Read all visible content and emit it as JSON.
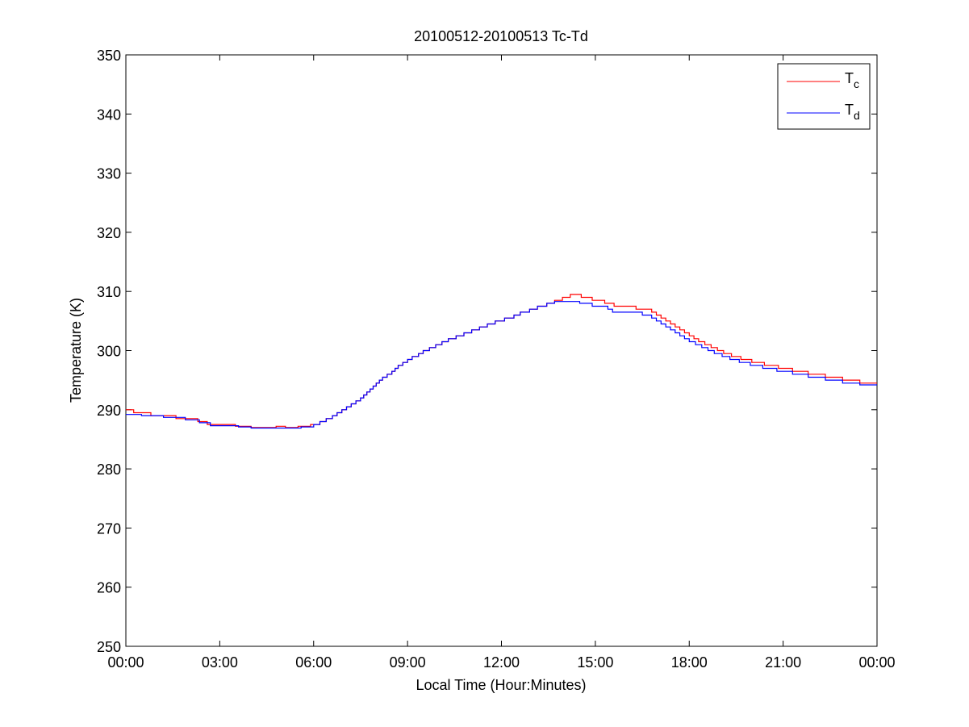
{
  "chart_data": {
    "type": "line",
    "title": "20100512-20100513 Tc-Td",
    "xlabel": "Local Time (Hour:Minutes)",
    "ylabel": "Temperature (K)",
    "xlim_hours": [
      0,
      24
    ],
    "ylim": [
      250,
      350
    ],
    "x_tick_hours": [
      0,
      3,
      6,
      9,
      12,
      15,
      18,
      21,
      24
    ],
    "x_tick_labels": [
      "00:00",
      "03:00",
      "06:00",
      "09:00",
      "12:00",
      "15:00",
      "18:00",
      "21:00",
      "00:00"
    ],
    "y_ticks": [
      250,
      260,
      270,
      280,
      290,
      300,
      310,
      320,
      330,
      340,
      350
    ],
    "grid": false,
    "legend_placement": "top-right",
    "series": [
      {
        "name": "Tc",
        "legend_main": "T",
        "legend_sub": "c",
        "color": "#ff0000",
        "step": true,
        "points": [
          [
            0.0,
            290.0
          ],
          [
            0.25,
            289.5
          ],
          [
            0.8,
            289.0
          ],
          [
            1.6,
            288.5
          ],
          [
            2.3,
            288.0
          ],
          [
            2.6,
            287.5
          ],
          [
            3.5,
            287.2
          ],
          [
            4.0,
            287.0
          ],
          [
            4.8,
            287.2
          ],
          [
            5.1,
            287.0
          ],
          [
            5.5,
            287.2
          ],
          [
            5.9,
            287.5
          ],
          [
            6.2,
            288.0
          ],
          [
            6.4,
            288.5
          ],
          [
            6.6,
            289.0
          ],
          [
            6.75,
            289.5
          ],
          [
            6.9,
            290.0
          ],
          [
            7.05,
            290.5
          ],
          [
            7.2,
            291.0
          ],
          [
            7.35,
            291.5
          ],
          [
            7.5,
            292.0
          ],
          [
            7.6,
            292.5
          ],
          [
            7.7,
            293.0
          ],
          [
            7.8,
            293.5
          ],
          [
            7.9,
            294.0
          ],
          [
            8.0,
            294.5
          ],
          [
            8.1,
            295.0
          ],
          [
            8.2,
            295.5
          ],
          [
            8.35,
            296.0
          ],
          [
            8.5,
            296.5
          ],
          [
            8.6,
            297.0
          ],
          [
            8.7,
            297.5
          ],
          [
            8.85,
            298.0
          ],
          [
            9.0,
            298.5
          ],
          [
            9.15,
            299.0
          ],
          [
            9.35,
            299.5
          ],
          [
            9.5,
            300.0
          ],
          [
            9.7,
            300.5
          ],
          [
            9.9,
            301.0
          ],
          [
            10.1,
            301.5
          ],
          [
            10.3,
            302.0
          ],
          [
            10.55,
            302.5
          ],
          [
            10.8,
            303.0
          ],
          [
            11.05,
            303.5
          ],
          [
            11.3,
            304.0
          ],
          [
            11.55,
            304.5
          ],
          [
            11.8,
            305.0
          ],
          [
            12.1,
            305.5
          ],
          [
            12.4,
            306.0
          ],
          [
            12.6,
            306.5
          ],
          [
            12.9,
            307.0
          ],
          [
            13.15,
            307.5
          ],
          [
            13.45,
            308.0
          ],
          [
            13.7,
            308.5
          ],
          [
            13.95,
            309.0
          ],
          [
            14.2,
            309.5
          ],
          [
            14.55,
            309.0
          ],
          [
            14.9,
            308.5
          ],
          [
            15.3,
            308.0
          ],
          [
            15.6,
            307.5
          ],
          [
            16.3,
            307.0
          ],
          [
            16.8,
            306.5
          ],
          [
            16.95,
            306.0
          ],
          [
            17.1,
            305.5
          ],
          [
            17.25,
            305.0
          ],
          [
            17.4,
            304.5
          ],
          [
            17.55,
            304.0
          ],
          [
            17.7,
            303.5
          ],
          [
            17.85,
            303.0
          ],
          [
            18.0,
            302.5
          ],
          [
            18.15,
            302.0
          ],
          [
            18.3,
            301.5
          ],
          [
            18.5,
            301.0
          ],
          [
            18.7,
            300.5
          ],
          [
            18.9,
            300.0
          ],
          [
            19.1,
            299.5
          ],
          [
            19.35,
            299.0
          ],
          [
            19.65,
            298.5
          ],
          [
            20.0,
            298.0
          ],
          [
            20.4,
            297.5
          ],
          [
            20.85,
            297.0
          ],
          [
            21.3,
            296.5
          ],
          [
            21.8,
            296.0
          ],
          [
            22.35,
            295.5
          ],
          [
            22.9,
            295.0
          ],
          [
            23.45,
            294.5
          ],
          [
            24.0,
            294.5
          ]
        ]
      },
      {
        "name": "Td",
        "legend_main": "T",
        "legend_sub": "d",
        "color": "#0000ff",
        "step": true,
        "points": [
          [
            0.0,
            289.2
          ],
          [
            0.5,
            289.0
          ],
          [
            1.2,
            288.7
          ],
          [
            1.9,
            288.3
          ],
          [
            2.35,
            287.8
          ],
          [
            2.7,
            287.3
          ],
          [
            3.6,
            287.1
          ],
          [
            4.0,
            286.9
          ],
          [
            5.6,
            287.1
          ],
          [
            6.0,
            287.5
          ],
          [
            6.2,
            288.0
          ],
          [
            6.4,
            288.5
          ],
          [
            6.6,
            289.0
          ],
          [
            6.75,
            289.5
          ],
          [
            6.9,
            290.0
          ],
          [
            7.05,
            290.5
          ],
          [
            7.2,
            291.0
          ],
          [
            7.35,
            291.5
          ],
          [
            7.5,
            292.0
          ],
          [
            7.6,
            292.5
          ],
          [
            7.7,
            293.0
          ],
          [
            7.8,
            293.5
          ],
          [
            7.9,
            294.0
          ],
          [
            8.0,
            294.5
          ],
          [
            8.1,
            295.0
          ],
          [
            8.2,
            295.5
          ],
          [
            8.35,
            296.0
          ],
          [
            8.5,
            296.5
          ],
          [
            8.6,
            297.0
          ],
          [
            8.7,
            297.5
          ],
          [
            8.85,
            298.0
          ],
          [
            9.0,
            298.5
          ],
          [
            9.15,
            299.0
          ],
          [
            9.35,
            299.5
          ],
          [
            9.5,
            300.0
          ],
          [
            9.7,
            300.5
          ],
          [
            9.9,
            301.0
          ],
          [
            10.1,
            301.5
          ],
          [
            10.3,
            302.0
          ],
          [
            10.55,
            302.5
          ],
          [
            10.8,
            303.0
          ],
          [
            11.05,
            303.5
          ],
          [
            11.3,
            304.0
          ],
          [
            11.55,
            304.5
          ],
          [
            11.8,
            305.0
          ],
          [
            12.1,
            305.5
          ],
          [
            12.4,
            306.0
          ],
          [
            12.6,
            306.5
          ],
          [
            12.9,
            307.0
          ],
          [
            13.15,
            307.5
          ],
          [
            13.45,
            308.0
          ],
          [
            13.7,
            308.3
          ],
          [
            14.5,
            308.0
          ],
          [
            14.9,
            307.5
          ],
          [
            15.4,
            307.0
          ],
          [
            15.55,
            306.5
          ],
          [
            16.5,
            306.0
          ],
          [
            16.8,
            305.5
          ],
          [
            16.95,
            305.0
          ],
          [
            17.1,
            304.5
          ],
          [
            17.25,
            304.0
          ],
          [
            17.4,
            303.5
          ],
          [
            17.55,
            303.0
          ],
          [
            17.7,
            302.5
          ],
          [
            17.85,
            302.0
          ],
          [
            18.0,
            301.5
          ],
          [
            18.2,
            301.0
          ],
          [
            18.4,
            300.5
          ],
          [
            18.6,
            300.0
          ],
          [
            18.8,
            299.5
          ],
          [
            19.05,
            299.0
          ],
          [
            19.3,
            298.5
          ],
          [
            19.6,
            298.0
          ],
          [
            19.95,
            297.5
          ],
          [
            20.35,
            297.0
          ],
          [
            20.8,
            296.5
          ],
          [
            21.3,
            296.0
          ],
          [
            21.8,
            295.5
          ],
          [
            22.35,
            295.0
          ],
          [
            22.9,
            294.5
          ],
          [
            23.45,
            294.2
          ],
          [
            24.0,
            294.2
          ]
        ]
      }
    ]
  }
}
